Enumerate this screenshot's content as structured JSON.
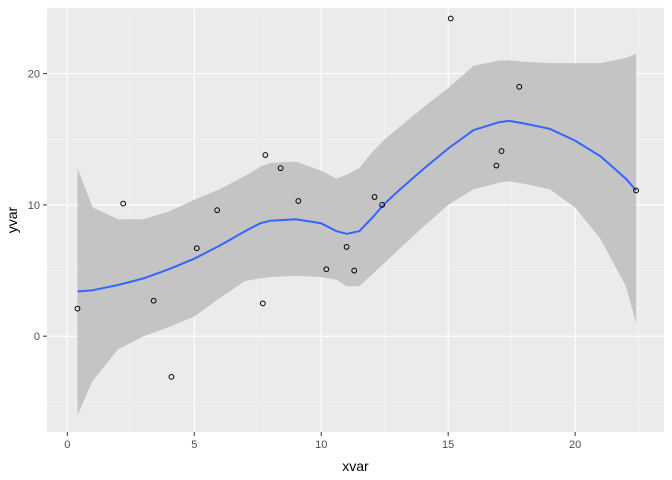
{
  "chart_data": {
    "type": "scatter",
    "xlabel": "xvar",
    "ylabel": "yvar",
    "xlim": [
      -0.8,
      23.5
    ],
    "ylim": [
      -7.3,
      25.0
    ],
    "x_ticks": [
      0,
      5,
      10,
      15,
      20
    ],
    "y_ticks": [
      0,
      10,
      20
    ],
    "x_tick_labels": [
      "0",
      "5",
      "10",
      "15",
      "20"
    ],
    "y_tick_labels": [
      "0",
      "10",
      "20"
    ],
    "grid": true,
    "legend": "none",
    "colors": {
      "panel": "#ebebeb",
      "grid_major": "#ffffff",
      "grid_minor": "#f5f5f5",
      "point_stroke": "#000000",
      "smooth_line": "#3366ff",
      "confidence_band": "#c4c4c4"
    },
    "points": [
      {
        "x": 0.4,
        "y": 2.1
      },
      {
        "x": 2.2,
        "y": 10.1
      },
      {
        "x": 3.4,
        "y": 2.7
      },
      {
        "x": 4.1,
        "y": -3.1
      },
      {
        "x": 5.1,
        "y": 6.7
      },
      {
        "x": 5.9,
        "y": 9.6
      },
      {
        "x": 7.7,
        "y": 2.5
      },
      {
        "x": 7.8,
        "y": 13.8
      },
      {
        "x": 8.4,
        "y": 12.8
      },
      {
        "x": 9.1,
        "y": 10.3
      },
      {
        "x": 10.2,
        "y": 5.1
      },
      {
        "x": 11.0,
        "y": 6.8
      },
      {
        "x": 11.3,
        "y": 5.0
      },
      {
        "x": 12.1,
        "y": 10.6
      },
      {
        "x": 12.4,
        "y": 10.0
      },
      {
        "x": 15.1,
        "y": 24.2
      },
      {
        "x": 16.9,
        "y": 13.0
      },
      {
        "x": 17.1,
        "y": 14.1
      },
      {
        "x": 17.8,
        "y": 19.0
      },
      {
        "x": 22.4,
        "y": 11.1
      }
    ],
    "smooth": {
      "x": [
        0.4,
        1.0,
        2.0,
        3.0,
        4.0,
        5.0,
        6.0,
        7.0,
        7.6,
        8.0,
        9.0,
        10.0,
        10.6,
        11.0,
        11.5,
        12.0,
        12.5,
        13.0,
        14.0,
        15.0,
        16.0,
        17.0,
        17.4,
        18.0,
        19.0,
        20.0,
        21.0,
        22.0,
        22.4
      ],
      "y": [
        3.4,
        3.5,
        3.9,
        4.4,
        5.1,
        5.9,
        6.9,
        8.0,
        8.6,
        8.8,
        8.9,
        8.6,
        8.0,
        7.8,
        8.0,
        9.0,
        10.1,
        11.0,
        12.7,
        14.3,
        15.7,
        16.3,
        16.4,
        16.2,
        15.8,
        14.9,
        13.7,
        12.0,
        11.1
      ],
      "lower": [
        -6.0,
        -3.4,
        -1.0,
        0.0,
        0.7,
        1.5,
        2.9,
        4.2,
        4.4,
        4.5,
        4.6,
        4.5,
        4.3,
        3.8,
        3.8,
        4.7,
        5.6,
        6.5,
        8.3,
        10.0,
        11.2,
        11.7,
        11.8,
        11.6,
        11.2,
        9.8,
        7.4,
        3.8,
        1.0
      ],
      "upper": [
        12.8,
        9.8,
        8.9,
        8.9,
        9.5,
        10.4,
        11.2,
        12.2,
        12.9,
        13.2,
        13.3,
        12.6,
        12.0,
        12.3,
        12.8,
        14.0,
        15.0,
        15.8,
        17.4,
        18.9,
        20.6,
        21.0,
        21.0,
        20.9,
        20.8,
        20.8,
        20.8,
        21.2,
        21.5
      ]
    }
  }
}
